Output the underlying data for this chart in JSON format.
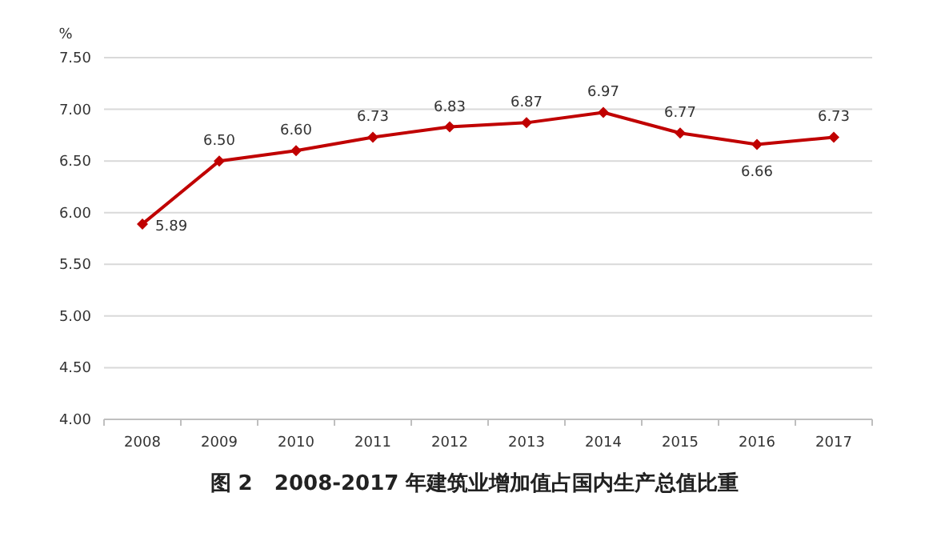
{
  "chart_data": {
    "type": "line",
    "title": "图 2   2008-2017 年建筑业增加值占国内生产总值比重",
    "ylabel": "%",
    "categories": [
      "2008",
      "2009",
      "2010",
      "2011",
      "2012",
      "2013",
      "2014",
      "2015",
      "2016",
      "2017"
    ],
    "values": [
      5.89,
      6.5,
      6.6,
      6.73,
      6.83,
      6.87,
      6.97,
      6.77,
      6.66,
      6.73
    ],
    "value_labels": [
      "5.89",
      "6.50",
      "6.60",
      "6.73",
      "6.83",
      "6.87",
      "6.97",
      "6.77",
      "6.66",
      "6.73"
    ],
    "color": "#c00000",
    "marker": "diamond",
    "grid": "y",
    "ylim": [
      4,
      7.5
    ],
    "yticks": [
      {
        "value": 4,
        "label": "4.00"
      },
      {
        "value": 4.5,
        "label": "4.50"
      },
      {
        "value": 5,
        "label": "5.00"
      },
      {
        "value": 5.5,
        "label": "5.50"
      },
      {
        "value": 6,
        "label": "6.00"
      },
      {
        "value": 6.5,
        "label": "6.50"
      },
      {
        "value": 7,
        "label": "7.00"
      },
      {
        "value": 7.5,
        "label": "7.50"
      }
    ]
  }
}
